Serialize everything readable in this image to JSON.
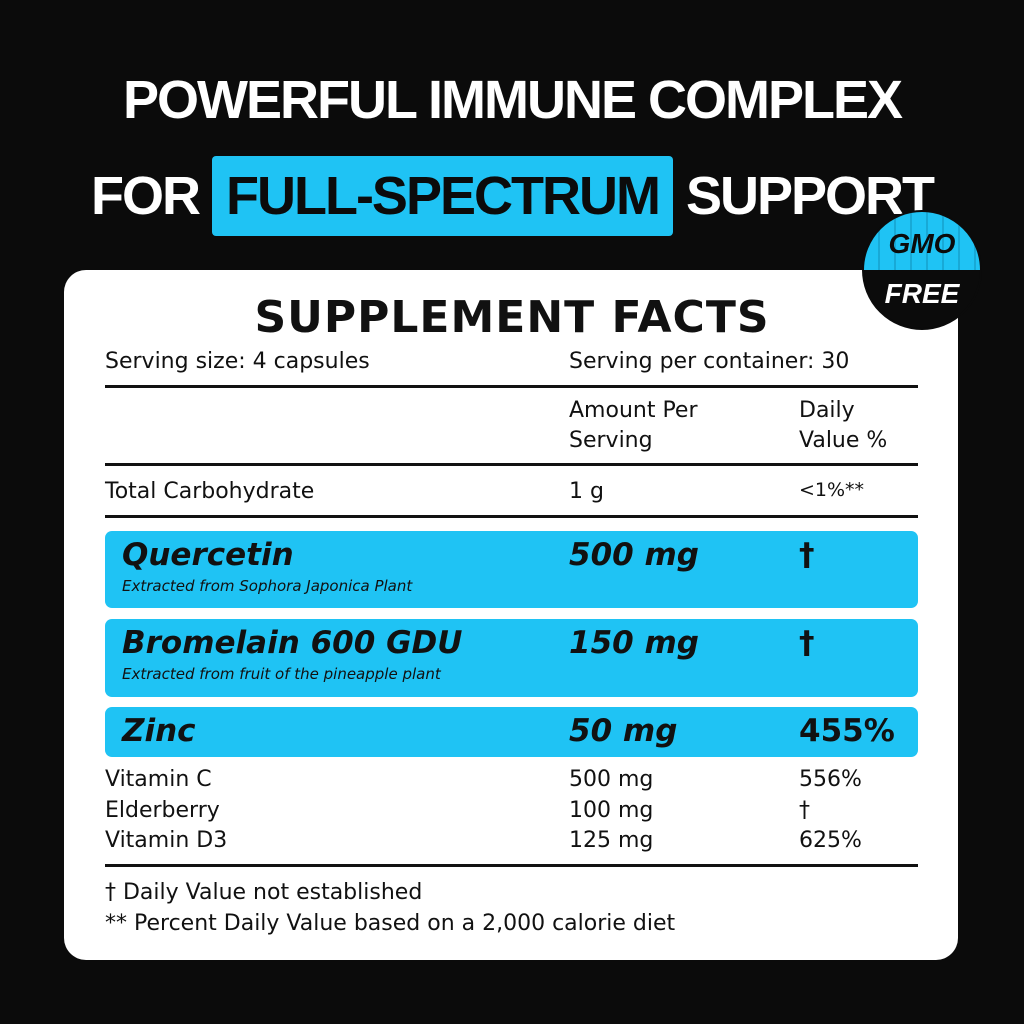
{
  "headline": {
    "line1": "POWERFUL IMMUNE COMPLEX",
    "line2_pre": "FOR",
    "line2_highlight": "FULL-SPECTRUM",
    "line2_post": "SUPPORT"
  },
  "badge": {
    "top": "GMO",
    "bottom": "FREE"
  },
  "colors": {
    "accent": "#1fc3f4",
    "background": "#0b0b0b"
  },
  "facts": {
    "title": "SUPPLEMENT FACTS",
    "serving_size": "Serving size: 4 capsules",
    "servings_per_container": "Serving per container: 30",
    "col_amount": [
      "Amount Per",
      "Serving"
    ],
    "col_dv": [
      "Daily",
      "Value %"
    ],
    "carb": {
      "name": "Total Carbohydrate",
      "amount": "1 g",
      "dv": "<1%**"
    },
    "highlighted": [
      {
        "name": "Quercetin",
        "note": "Extracted from Sophora Japonica Plant",
        "amount": "500 mg",
        "dv": "†"
      },
      {
        "name": "Bromelain 600 GDU",
        "note": "Extracted from fruit of the pineapple plant",
        "amount": "150 mg",
        "dv": "†"
      },
      {
        "name": "Zinc",
        "amount": "50 mg",
        "dv": "455%"
      }
    ],
    "others": [
      {
        "name": "Vitamin C",
        "amount": "500 mg",
        "dv": "556%"
      },
      {
        "name": "Elderberry",
        "amount": "100 mg",
        "dv": "†"
      },
      {
        "name": "Vitamin D3",
        "amount": "125 mg",
        "dv": "625%"
      }
    ],
    "footnotes": [
      "† Daily Value not established",
      "** Percent Daily Value based on a 2,000 calorie diet"
    ]
  }
}
